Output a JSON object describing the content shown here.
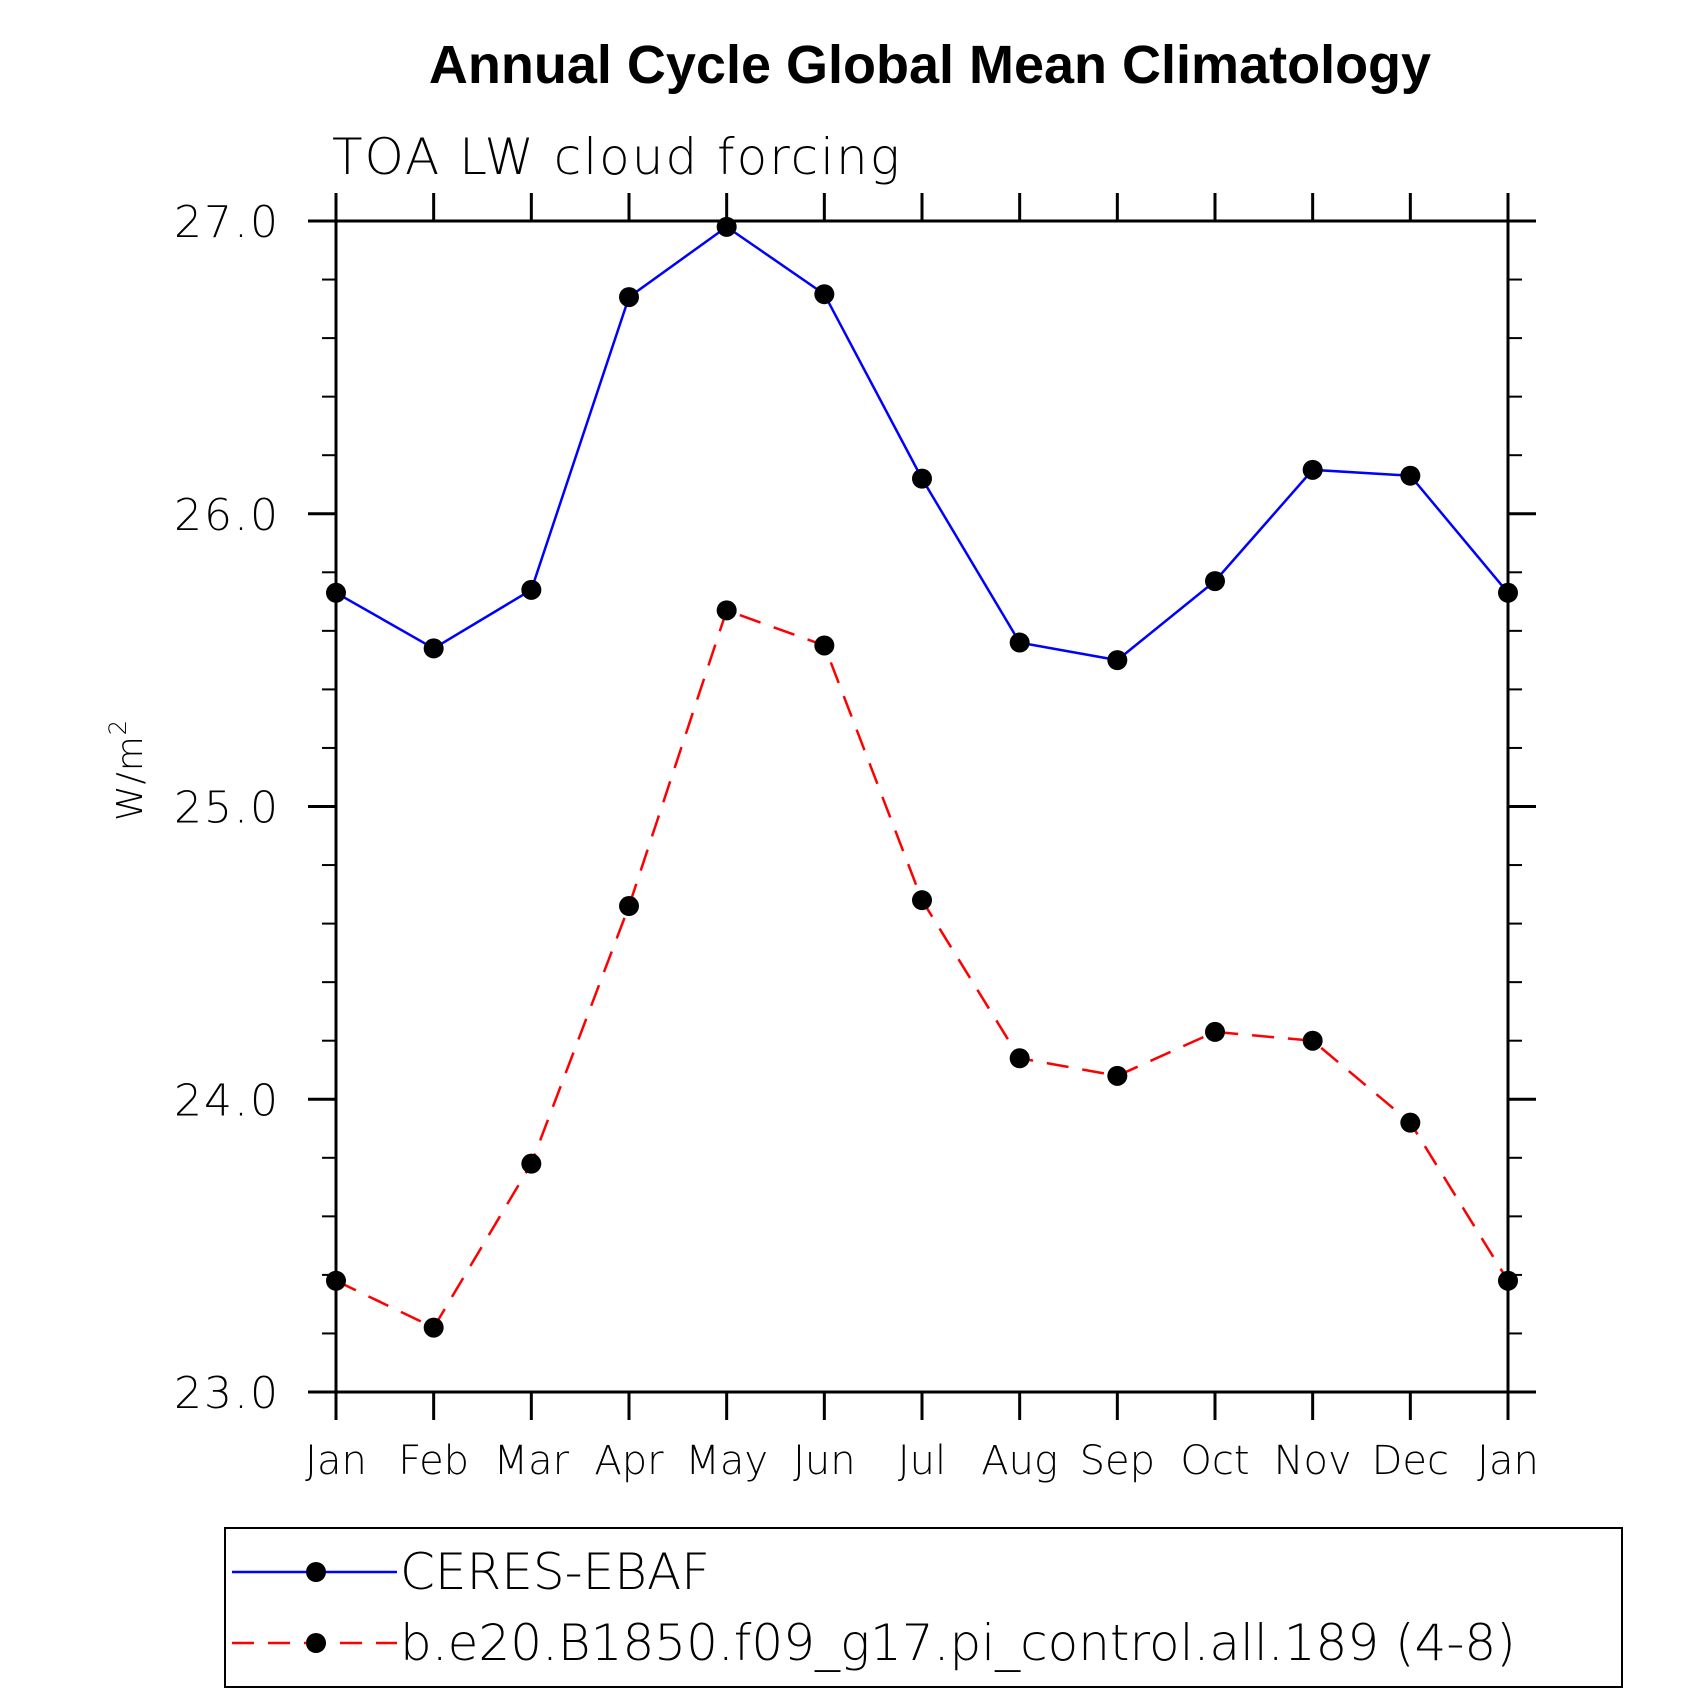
{
  "chart_data": {
    "type": "line",
    "title": "Annual Cycle Global Mean Climatology",
    "subtitle": "TOA LW cloud forcing",
    "ylabel": "W/m",
    "ylabel_superscript": "2",
    "xlabel": "",
    "ylim": [
      23.0,
      27.0
    ],
    "y_major_ticks": [
      23.0,
      24.0,
      25.0,
      26.0,
      27.0
    ],
    "y_tick_labels": [
      "23.0",
      "24.0",
      "25.0",
      "26.0",
      "27.0"
    ],
    "y_minor_step": 0.2,
    "categories": [
      "Jan",
      "Feb",
      "Mar",
      "Apr",
      "May",
      "Jun",
      "Jul",
      "Aug",
      "Sep",
      "Oct",
      "Nov",
      "Dec",
      "Jan"
    ],
    "grid": false,
    "legend_position": "bottom",
    "series": [
      {
        "name": "CERES-EBAF",
        "color": "#0000ff",
        "dash": "solid",
        "marker": "filled-circle",
        "values": [
          25.73,
          25.54,
          25.74,
          26.74,
          26.98,
          26.75,
          26.12,
          25.56,
          25.5,
          25.77,
          26.15,
          26.13,
          25.73
        ]
      },
      {
        "name": "b.e20.B1850.f09_g17.pi_control.all.189 (4-8)",
        "color": "#ff0000",
        "dash": "dashed",
        "marker": "filled-circle",
        "values": [
          23.38,
          23.22,
          23.78,
          24.66,
          25.67,
          25.55,
          24.68,
          24.14,
          24.08,
          24.23,
          24.2,
          23.92,
          23.38
        ]
      }
    ]
  }
}
